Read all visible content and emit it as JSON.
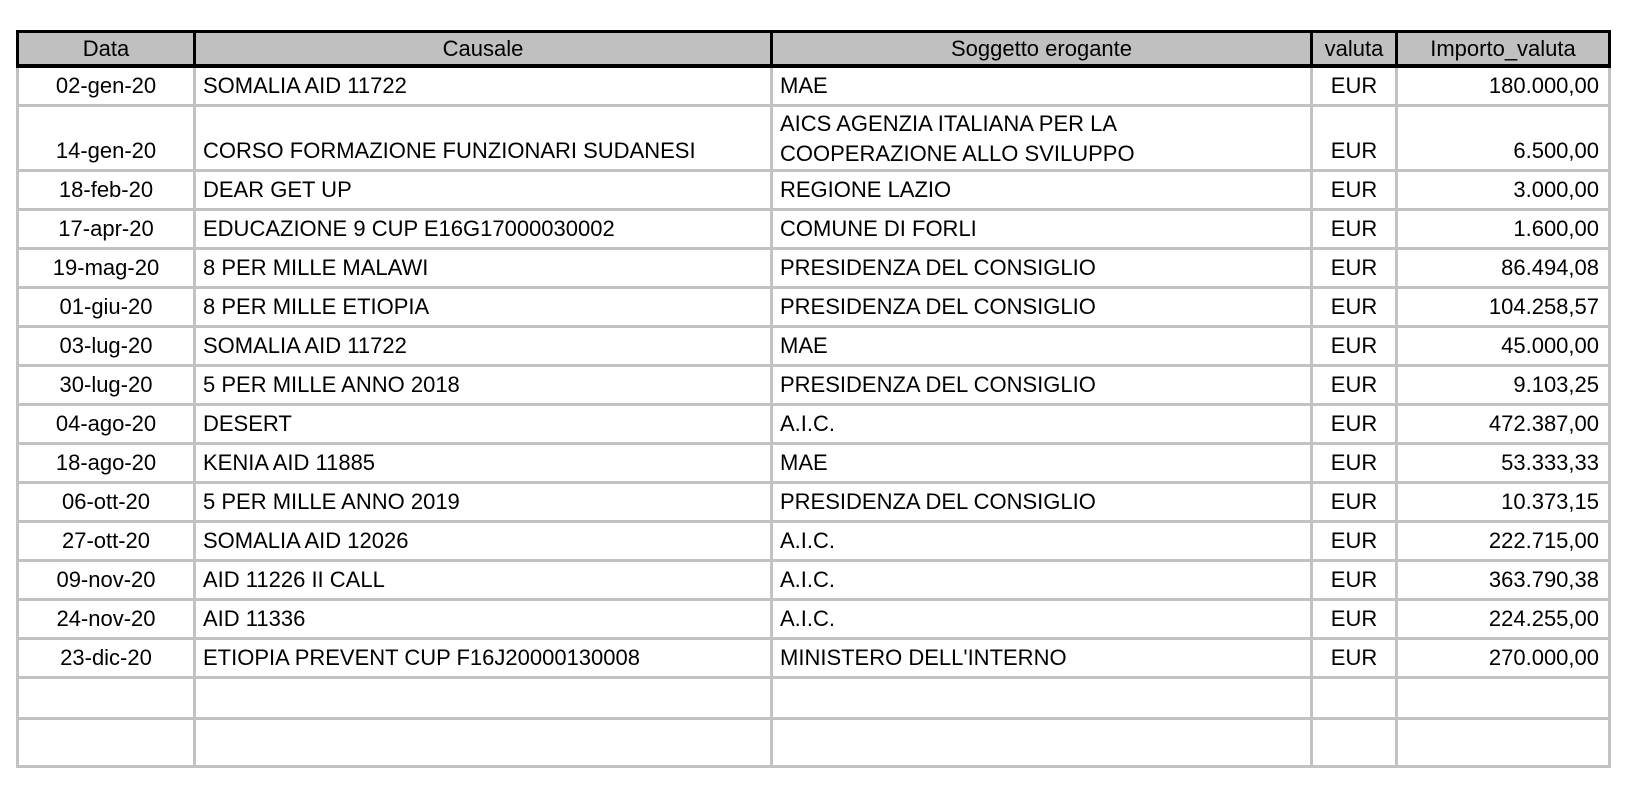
{
  "table": {
    "columns": [
      {
        "key": "data",
        "label": "Data"
      },
      {
        "key": "causale",
        "label": "Causale"
      },
      {
        "key": "soggetto",
        "label": "Soggetto erogante"
      },
      {
        "key": "valuta",
        "label": "valuta"
      },
      {
        "key": "importo",
        "label": "Importo_valuta"
      }
    ],
    "rows": [
      {
        "data": "02-gen-20",
        "causale": "SOMALIA AID 11722",
        "soggetto": "MAE",
        "valuta": "EUR",
        "importo": "180.000,00"
      },
      {
        "data": "14-gen-20",
        "causale": "CORSO FORMAZIONE FUNZIONARI SUDANESI",
        "soggetto": "AICS AGENZIA ITALIANA PER LA\nCOOPERAZIONE ALLO SVILUPPO",
        "valuta": "EUR",
        "importo": "6.500,00"
      },
      {
        "data": "18-feb-20",
        "causale": "DEAR GET UP",
        "soggetto": "REGIONE LAZIO",
        "valuta": "EUR",
        "importo": "3.000,00"
      },
      {
        "data": "17-apr-20",
        "causale": "EDUCAZIONE 9 CUP E16G17000030002",
        "soggetto": "COMUNE DI FORLI",
        "valuta": "EUR",
        "importo": "1.600,00"
      },
      {
        "data": "19-mag-20",
        "causale": "8 PER MILLE MALAWI",
        "soggetto": "PRESIDENZA DEL CONSIGLIO",
        "valuta": "EUR",
        "importo": "86.494,08"
      },
      {
        "data": "01-giu-20",
        "causale": "8 PER MILLE ETIOPIA",
        "soggetto": "PRESIDENZA DEL CONSIGLIO",
        "valuta": "EUR",
        "importo": "104.258,57"
      },
      {
        "data": "03-lug-20",
        "causale": "SOMALIA AID 11722",
        "soggetto": "MAE",
        "valuta": "EUR",
        "importo": "45.000,00"
      },
      {
        "data": "30-lug-20",
        "causale": "5 PER MILLE ANNO 2018",
        "soggetto": "PRESIDENZA DEL CONSIGLIO",
        "valuta": "EUR",
        "importo": "9.103,25"
      },
      {
        "data": "04-ago-20",
        "causale": "DESERT",
        "soggetto": "A.I.C.",
        "valuta": "EUR",
        "importo": "472.387,00"
      },
      {
        "data": "18-ago-20",
        "causale": "KENIA AID 11885",
        "soggetto": "MAE",
        "valuta": "EUR",
        "importo": "53.333,33"
      },
      {
        "data": "06-ott-20",
        "causale": "5 PER MILLE ANNO 2019",
        "soggetto": "PRESIDENZA DEL CONSIGLIO",
        "valuta": "EUR",
        "importo": "10.373,15"
      },
      {
        "data": "27-ott-20",
        "causale": "SOMALIA AID 12026",
        "soggetto": "A.I.C.",
        "valuta": "EUR",
        "importo": "222.715,00"
      },
      {
        "data": "09-nov-20",
        "causale": "AID 11226 II CALL",
        "soggetto": "A.I.C.",
        "valuta": "EUR",
        "importo": "363.790,38"
      },
      {
        "data": "24-nov-20",
        "causale": "AID 11336",
        "soggetto": "A.I.C.",
        "valuta": "EUR",
        "importo": "224.255,00"
      },
      {
        "data": "23-dic-20",
        "causale": "ETIOPIA PREVENT CUP F16J20000130008",
        "soggetto": "MINISTERO DELL'INTERNO",
        "valuta": "EUR",
        "importo": "270.000,00"
      },
      {
        "data": "",
        "causale": "",
        "soggetto": "",
        "valuta": "",
        "importo": ""
      },
      {
        "data": "",
        "causale": "",
        "soggetto": "",
        "valuta": "",
        "importo": ""
      }
    ]
  }
}
